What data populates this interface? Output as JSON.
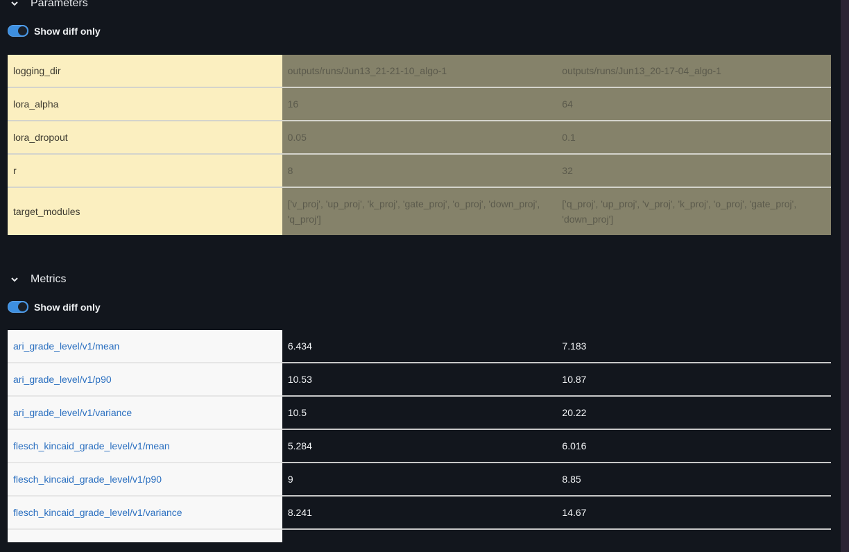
{
  "parameters": {
    "title": "Parameters",
    "toggle_label": "Show diff only",
    "toggle_on": true,
    "rows": [
      {
        "key": "logging_dir",
        "values": [
          "outputs/runs/Jun13_21-21-10_algo-1",
          "outputs/runs/Jun13_20-17-04_algo-1"
        ]
      },
      {
        "key": "lora_alpha",
        "values": [
          "16",
          "64"
        ]
      },
      {
        "key": "lora_dropout",
        "values": [
          "0.05",
          "0.1"
        ]
      },
      {
        "key": "r",
        "values": [
          "8",
          "32"
        ]
      },
      {
        "key": "target_modules",
        "values": [
          "['v_proj', 'up_proj', 'k_proj', 'gate_proj', 'o_proj', 'down_proj', 'q_proj']",
          "['q_proj', 'up_proj', 'v_proj', 'k_proj', 'o_proj', 'gate_proj', 'down_proj']"
        ]
      }
    ]
  },
  "metrics": {
    "title": "Metrics",
    "toggle_label": "Show diff only",
    "toggle_on": true,
    "rows": [
      {
        "key": "ari_grade_level/v1/mean",
        "values": [
          "6.434",
          "7.183"
        ]
      },
      {
        "key": "ari_grade_level/v1/p90",
        "values": [
          "10.53",
          "10.87"
        ]
      },
      {
        "key": "ari_grade_level/v1/variance",
        "values": [
          "10.5",
          "20.22"
        ]
      },
      {
        "key": "flesch_kincaid_grade_level/v1/mean",
        "values": [
          "5.284",
          "6.016"
        ]
      },
      {
        "key": "flesch_kincaid_grade_level/v1/p90",
        "values": [
          "9",
          "8.85"
        ]
      },
      {
        "key": "flesch_kincaid_grade_level/v1/variance",
        "values": [
          "8.241",
          "14.67"
        ]
      }
    ]
  },
  "colors": {
    "accent": "#3d8fe0",
    "param_key_bg": "#fbefc0",
    "param_diff_bg": "#85826a",
    "metric_link": "#2a6fc0",
    "background": "#12161d"
  }
}
